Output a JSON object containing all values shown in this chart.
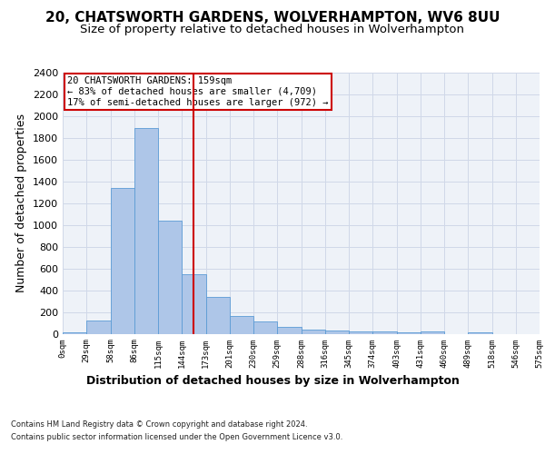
{
  "title": "20, CHATSWORTH GARDENS, WOLVERHAMPTON, WV6 8UU",
  "subtitle": "Size of property relative to detached houses in Wolverhampton",
  "xlabel": "Distribution of detached houses by size in Wolverhampton",
  "ylabel": "Number of detached properties",
  "footer_line1": "Contains HM Land Registry data © Crown copyright and database right 2024.",
  "footer_line2": "Contains public sector information licensed under the Open Government Licence v3.0.",
  "bar_heights": [
    15,
    120,
    1340,
    1890,
    1040,
    545,
    335,
    165,
    110,
    60,
    40,
    30,
    25,
    20,
    15,
    20,
    0,
    15,
    0,
    0
  ],
  "bin_labels": [
    "0sqm",
    "29sqm",
    "58sqm",
    "86sqm",
    "115sqm",
    "144sqm",
    "173sqm",
    "201sqm",
    "230sqm",
    "259sqm",
    "288sqm",
    "316sqm",
    "345sqm",
    "374sqm",
    "403sqm",
    "431sqm",
    "460sqm",
    "489sqm",
    "518sqm",
    "546sqm",
    "575sqm"
  ],
  "bar_color": "#aec6e8",
  "bar_edge_color": "#5b9bd5",
  "grid_color": "#d0d8e8",
  "background_color": "#eef2f8",
  "vline_color": "#cc0000",
  "annotation_text": "20 CHATSWORTH GARDENS: 159sqm\n← 83% of detached houses are smaller (4,709)\n17% of semi-detached houses are larger (972) →",
  "annotation_box_color": "#cc0000",
  "ylim": [
    0,
    2400
  ],
  "yticks": [
    0,
    200,
    400,
    600,
    800,
    1000,
    1200,
    1400,
    1600,
    1800,
    2000,
    2200,
    2400
  ],
  "title_fontsize": 11,
  "subtitle_fontsize": 9.5,
  "annotation_fontsize": 7.5,
  "ylabel_fontsize": 9,
  "xlabel_fontsize": 9,
  "footer_fontsize": 6.0,
  "ytick_fontsize": 8,
  "xtick_fontsize": 6.5,
  "n_bars": 20,
  "vline_pos": 5.5
}
